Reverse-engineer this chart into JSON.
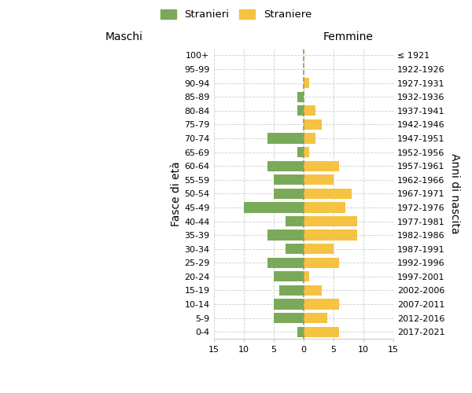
{
  "age_groups": [
    "0-4",
    "5-9",
    "10-14",
    "15-19",
    "20-24",
    "25-29",
    "30-34",
    "35-39",
    "40-44",
    "45-49",
    "50-54",
    "55-59",
    "60-64",
    "65-69",
    "70-74",
    "75-79",
    "80-84",
    "85-89",
    "90-94",
    "95-99",
    "100+"
  ],
  "birth_years": [
    "2017-2021",
    "2012-2016",
    "2007-2011",
    "2002-2006",
    "1997-2001",
    "1992-1996",
    "1987-1991",
    "1982-1986",
    "1977-1981",
    "1972-1976",
    "1967-1971",
    "1962-1966",
    "1957-1961",
    "1952-1956",
    "1947-1951",
    "1942-1946",
    "1937-1941",
    "1932-1936",
    "1927-1931",
    "1922-1926",
    "≤ 1921"
  ],
  "maschi": [
    1,
    5,
    5,
    4,
    5,
    6,
    3,
    6,
    3,
    10,
    5,
    5,
    6,
    1,
    6,
    0,
    1,
    1,
    0,
    0,
    0
  ],
  "femmine": [
    6,
    4,
    6,
    3,
    1,
    6,
    5,
    9,
    9,
    7,
    8,
    5,
    6,
    1,
    2,
    3,
    2,
    0,
    1,
    0,
    0
  ],
  "maschi_color": "#7aaa59",
  "femmine_color": "#f5c242",
  "bar_height": 0.75,
  "xlim": 15,
  "ylabel_left": "Fasce di età",
  "ylabel_right": "Anni di nascita",
  "xlabel_left": "Maschi",
  "xlabel_right": "Femmine",
  "legend_stranieri": "Stranieri",
  "legend_straniere": "Straniere",
  "background_color": "#ffffff",
  "grid_color": "#cccccc",
  "dashed_line_color": "#999966",
  "title_fontsize": 11,
  "subtitle_fontsize": 8,
  "tick_fontsize": 8,
  "label_fontsize": 10
}
